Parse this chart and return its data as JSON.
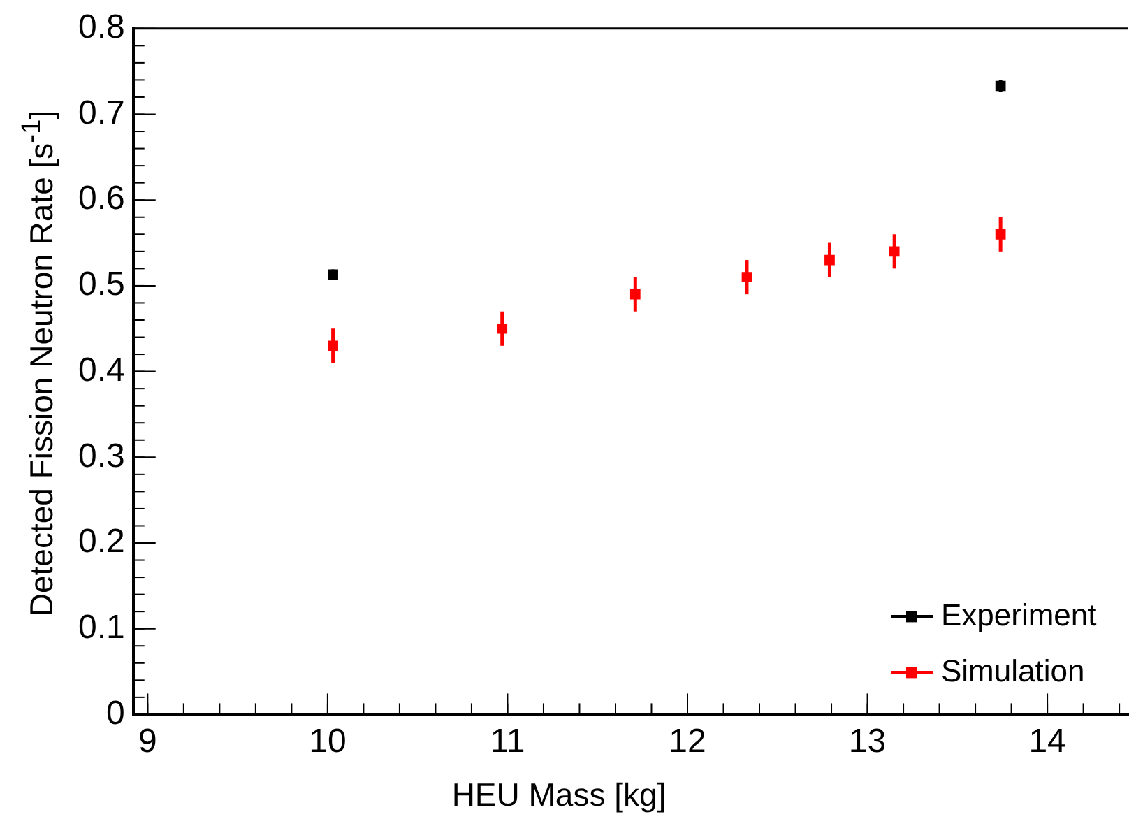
{
  "chart_data": {
    "type": "scatter",
    "xlabel": "HEU Mass [kg]",
    "ylabel": "Detected Fission Neutron Rate [s$^{-1}$]",
    "xlim": [
      8.92,
      14.45
    ],
    "xticks": [
      9,
      10,
      11,
      12,
      13,
      14
    ],
    "ylim": [
      0,
      0.8
    ],
    "yticks": [
      0,
      0.1,
      0.2,
      0.3,
      0.4,
      0.5,
      0.6,
      0.7,
      0.8
    ],
    "series": [
      {
        "name": "Experiment",
        "color": "#000000",
        "x": [
          10.03,
          13.74
        ],
        "values": [
          0.513,
          0.733
        ],
        "errors": [
          0.006,
          0.007
        ]
      },
      {
        "name": "Simulation",
        "color": "#ff0000",
        "x": [
          10.03,
          10.97,
          11.71,
          12.33,
          12.79,
          13.15,
          13.74
        ],
        "values": [
          0.43,
          0.45,
          0.49,
          0.51,
          0.53,
          0.54,
          0.56
        ],
        "errors": [
          0.02,
          0.02,
          0.02,
          0.02,
          0.02,
          0.02,
          0.02
        ]
      }
    ],
    "marker": "square",
    "grid": false,
    "legend": "bottom right"
  }
}
